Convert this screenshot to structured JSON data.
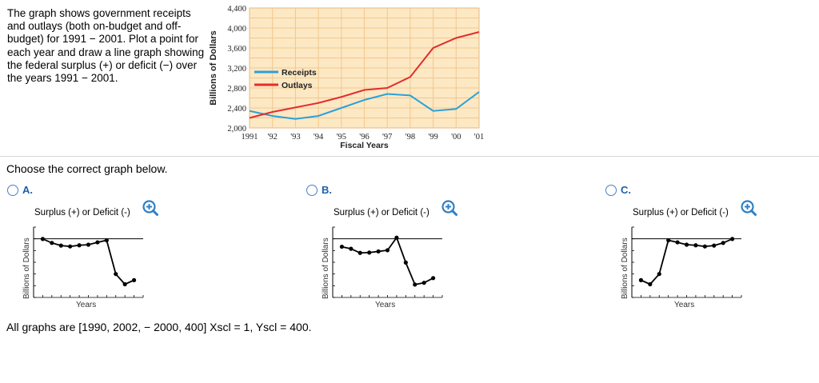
{
  "problem": {
    "text": "The graph shows government receipts and outlays (both on-budget and off-budget) for 1991 − 2001. Plot a point for each year and draw a line graph showing the federal surplus (+) or deficit (−) over the years 1991 − 2001."
  },
  "chart_data": {
    "type": "line",
    "ylabel": "Billions of Dollars",
    "xlabel": "Fiscal Years",
    "ylim": [
      2000,
      4400
    ],
    "y_ticks": [
      "2,000",
      "2,400",
      "2,800",
      "3,200",
      "3,600",
      "4,000",
      "4,400"
    ],
    "x_ticks": [
      "1991",
      "'92",
      "'93",
      "'94",
      "'95",
      "'96",
      "'97",
      "'98",
      "'99",
      "'00",
      "'01"
    ],
    "x": [
      1991,
      1992,
      1993,
      1994,
      1995,
      1996,
      1997,
      1998,
      1999,
      2000,
      2001
    ],
    "series": [
      {
        "name": "Receipts",
        "color": "#2aa1d8",
        "values": [
          2340,
          2240,
          2180,
          2240,
          2400,
          2560,
          2680,
          2650,
          2340,
          2380,
          2720
        ]
      },
      {
        "name": "Outlays",
        "color": "#e32d2d",
        "values": [
          2200,
          2320,
          2410,
          2500,
          2620,
          2760,
          2800,
          3020,
          3600,
          3800,
          3920
        ]
      }
    ],
    "legend": "center-left",
    "grid": true
  },
  "prompt": "Choose the correct graph below.",
  "options": [
    {
      "letter": "A.",
      "title": "Surplus (+) or Deficit (-)",
      "ylabel": "Billions of Dollars",
      "xlabel": "Years",
      "values": [
        -5,
        -140,
        -230,
        -260,
        -220,
        -200,
        -120,
        -50,
        -1200,
        -1550,
        -1410
      ]
    },
    {
      "letter": "B.",
      "title": "Surplus (+) or Deficit (-)",
      "ylabel": "Billions of Dollars",
      "xlabel": "Years",
      "values": [
        -270,
        -340,
        -480,
        -470,
        -430,
        -390,
        40,
        -810,
        -1560,
        -1500,
        -1340
      ]
    },
    {
      "letter": "C.",
      "title": "Surplus (+) or Deficit (-)",
      "ylabel": "Billions of Dollars",
      "xlabel": "Years",
      "values": [
        -1410,
        -1550,
        -1200,
        -50,
        -120,
        -200,
        -220,
        -260,
        -230,
        -140,
        -5
      ]
    }
  ],
  "footer": "All graphs are [1990, 2002, − 2000, 400] Xscl = 1, Yscl = 400.",
  "icons": {
    "zoom": "zoom-in-icon"
  }
}
